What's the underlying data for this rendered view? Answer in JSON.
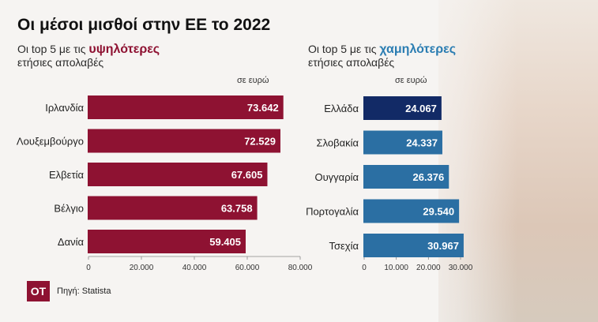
{
  "title": "Οι μέσοι μισθοί στην ΕΕ το 2022",
  "left_subtitle": {
    "prefix": "Οι top 5 με τις ",
    "highlight": "υψηλότερες",
    "line2": "ετήσιες απολαβές"
  },
  "right_subtitle": {
    "prefix": "Οι top 5 με τις ",
    "highlight": "χαμηλότερες",
    "line2": "ετήσιες απολαβές"
  },
  "unit_label": "σε ευρώ",
  "source": {
    "logo": "OT",
    "text": "Πηγή: Statista"
  },
  "colors": {
    "left_bar": "#8e1232",
    "right_bar": "#2b6fa3",
    "right_highlight": "#122a66"
  },
  "chart_data": [
    {
      "type": "bar",
      "orientation": "horizontal",
      "title": "Οι top 5 με τις υψηλότερες ετήσιες απολαβές",
      "unit": "σε ευρώ",
      "categories": [
        "Ιρλανδία",
        "Λουξεμβούργο",
        "Ελβετία",
        "Βέλγιο",
        "Δανία"
      ],
      "values": [
        73642,
        72529,
        67605,
        63758,
        59405
      ],
      "value_labels": [
        "73.642",
        "72.529",
        "67.605",
        "63.758",
        "59.405"
      ],
      "xlim": [
        0,
        80000
      ],
      "ticks": [
        0,
        20000,
        40000,
        60000,
        80000
      ],
      "tick_labels": [
        "0",
        "20.000",
        "40.000",
        "60.000",
        "80.000"
      ]
    },
    {
      "type": "bar",
      "orientation": "horizontal",
      "title": "Οι top 5 με τις χαμηλότερες ετήσιες απολαβές",
      "unit": "σε ευρώ",
      "categories": [
        "Ελλάδα",
        "Σλοβακία",
        "Ουγγαρία",
        "Πορτογαλία",
        "Τσεχία"
      ],
      "values": [
        24067,
        24337,
        26376,
        29540,
        30967
      ],
      "value_labels": [
        "24.067",
        "24.337",
        "26.376",
        "29.540",
        "30.967"
      ],
      "highlight_index": 0,
      "xlim": [
        0,
        30000
      ],
      "ticks": [
        0,
        10000,
        20000,
        30000
      ],
      "tick_labels": [
        "0",
        "10.000",
        "20.000",
        "30.000"
      ]
    }
  ]
}
